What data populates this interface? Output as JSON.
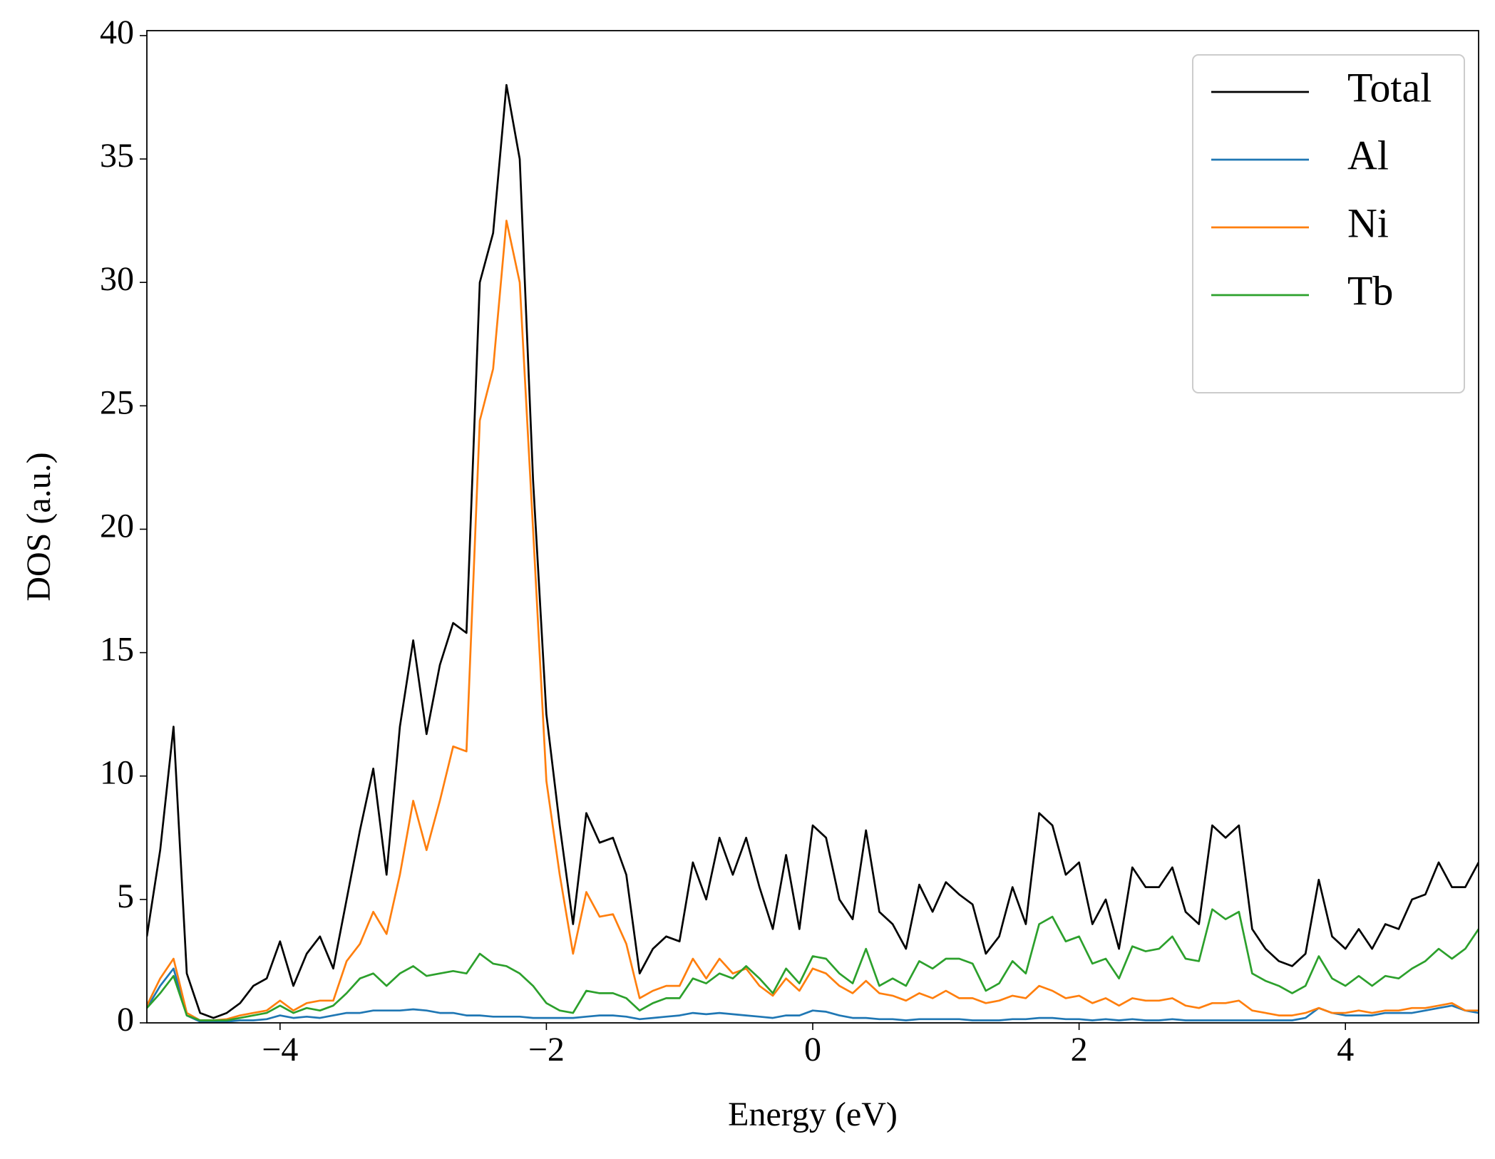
{
  "chart_data": {
    "type": "line",
    "xlabel": "Energy (eV)",
    "ylabel": "DOS (a.u.)",
    "x": [
      -5.0,
      -4.9,
      -4.8,
      -4.7,
      -4.6,
      -4.5,
      -4.4,
      -4.3,
      -4.2,
      -4.1,
      -4.0,
      -3.9,
      -3.8,
      -3.7,
      -3.6,
      -3.5,
      -3.4,
      -3.3,
      -3.2,
      -3.1,
      -3.0,
      -2.9,
      -2.8,
      -2.7,
      -2.6,
      -2.5,
      -2.4,
      -2.3,
      -2.2,
      -2.1,
      -2.0,
      -1.9,
      -1.8,
      -1.7,
      -1.6,
      -1.5,
      -1.4,
      -1.3,
      -1.2,
      -1.1,
      -1.0,
      -0.9,
      -0.8,
      -0.7,
      -0.6,
      -0.5,
      -0.4,
      -0.3,
      -0.2,
      -0.1,
      0.0,
      0.1,
      0.2,
      0.3,
      0.4,
      0.5,
      0.6,
      0.7,
      0.8,
      0.9,
      1.0,
      1.1,
      1.2,
      1.3,
      1.4,
      1.5,
      1.6,
      1.7,
      1.8,
      1.9,
      2.0,
      2.1,
      2.2,
      2.3,
      2.4,
      2.5,
      2.6,
      2.7,
      2.8,
      2.9,
      3.0,
      3.1,
      3.2,
      3.3,
      3.4,
      3.5,
      3.6,
      3.7,
      3.8,
      3.9,
      4.0,
      4.1,
      4.2,
      4.3,
      4.4,
      4.5,
      4.6,
      4.7,
      4.8,
      4.9,
      5.0
    ],
    "series": [
      {
        "name": "Total",
        "color": "#000000",
        "values": [
          3.5,
          7,
          12,
          2,
          0.4,
          0.2,
          0.4,
          0.8,
          1.5,
          1.8,
          3.3,
          1.5,
          2.8,
          3.5,
          2.2,
          5,
          7.8,
          10.3,
          6,
          12,
          15.5,
          11.7,
          14.5,
          16.2,
          15.8,
          30,
          32,
          38,
          35,
          22,
          12.5,
          8,
          4,
          8.5,
          7.3,
          7.5,
          6,
          2,
          3,
          3.5,
          3.3,
          6.5,
          5,
          7.5,
          6,
          7.5,
          5.5,
          3.8,
          6.8,
          3.8,
          8.0,
          7.5,
          5.0,
          4.2,
          7.8,
          4.5,
          4.0,
          3.0,
          5.6,
          4.5,
          5.7,
          5.2,
          4.8,
          2.8,
          3.5,
          5.5,
          4.0,
          8.5,
          8.0,
          6,
          6.5,
          4,
          5,
          3.0,
          6.3,
          5.5,
          5.5,
          6.3,
          4.5,
          4.0,
          8.0,
          7.5,
          8.0,
          3.8,
          3,
          2.5,
          2.3,
          2.8,
          5.8,
          3.5,
          3,
          3.8,
          3,
          4,
          3.8,
          5,
          5.2,
          6.5,
          5.5,
          5.5,
          6.5
        ]
      },
      {
        "name": "Al",
        "color": "#1f77b4",
        "values": [
          0.6,
          1.5,
          2.2,
          0.3,
          0.05,
          0.05,
          0.05,
          0.1,
          0.1,
          0.15,
          0.3,
          0.2,
          0.25,
          0.2,
          0.3,
          0.4,
          0.4,
          0.5,
          0.5,
          0.5,
          0.55,
          0.5,
          0.4,
          0.4,
          0.3,
          0.3,
          0.25,
          0.25,
          0.25,
          0.2,
          0.2,
          0.2,
          0.2,
          0.25,
          0.3,
          0.3,
          0.25,
          0.15,
          0.2,
          0.25,
          0.3,
          0.4,
          0.35,
          0.4,
          0.35,
          0.3,
          0.25,
          0.2,
          0.3,
          0.3,
          0.5,
          0.45,
          0.3,
          0.2,
          0.2,
          0.15,
          0.15,
          0.1,
          0.15,
          0.15,
          0.15,
          0.15,
          0.1,
          0.1,
          0.1,
          0.15,
          0.15,
          0.2,
          0.2,
          0.15,
          0.15,
          0.1,
          0.15,
          0.1,
          0.15,
          0.1,
          0.1,
          0.15,
          0.1,
          0.1,
          0.1,
          0.1,
          0.1,
          0.1,
          0.1,
          0.1,
          0.1,
          0.2,
          0.6,
          0.4,
          0.3,
          0.3,
          0.3,
          0.4,
          0.4,
          0.4,
          0.5,
          0.6,
          0.7,
          0.5,
          0.4
        ]
      },
      {
        "name": "Ni",
        "color": "#ff7f0e",
        "values": [
          0.7,
          1.8,
          2.6,
          0.4,
          0.1,
          0.1,
          0.15,
          0.3,
          0.4,
          0.5,
          0.9,
          0.5,
          0.8,
          0.9,
          0.9,
          2.5,
          3.2,
          4.5,
          3.6,
          6,
          9,
          7,
          9,
          11.2,
          11,
          24.4,
          26.5,
          32.5,
          30,
          20,
          9.8,
          6,
          2.8,
          5.3,
          4.3,
          4.4,
          3.2,
          1.0,
          1.3,
          1.5,
          1.5,
          2.6,
          1.8,
          2.6,
          2.0,
          2.2,
          1.5,
          1.1,
          1.8,
          1.3,
          2.2,
          2.0,
          1.5,
          1.2,
          1.7,
          1.2,
          1.1,
          0.9,
          1.2,
          1.0,
          1.3,
          1.0,
          1.0,
          0.8,
          0.9,
          1.1,
          1.0,
          1.5,
          1.3,
          1.0,
          1.1,
          0.8,
          1.0,
          0.7,
          1.0,
          0.9,
          0.9,
          1.0,
          0.7,
          0.6,
          0.8,
          0.8,
          0.9,
          0.5,
          0.4,
          0.3,
          0.3,
          0.4,
          0.6,
          0.4,
          0.4,
          0.5,
          0.4,
          0.5,
          0.5,
          0.6,
          0.6,
          0.7,
          0.8,
          0.5,
          0.5
        ]
      },
      {
        "name": "Tb",
        "color": "#2ca02c",
        "values": [
          0.6,
          1.2,
          1.9,
          0.3,
          0.1,
          0.1,
          0.1,
          0.2,
          0.3,
          0.4,
          0.7,
          0.4,
          0.6,
          0.5,
          0.7,
          1.2,
          1.8,
          2.0,
          1.5,
          2.0,
          2.3,
          1.9,
          2.0,
          2.1,
          2.0,
          2.8,
          2.4,
          2.3,
          2.0,
          1.5,
          0.8,
          0.5,
          0.4,
          1.3,
          1.2,
          1.2,
          1.0,
          0.5,
          0.8,
          1.0,
          1.0,
          1.8,
          1.6,
          2.0,
          1.8,
          2.3,
          1.8,
          1.2,
          2.2,
          1.6,
          2.7,
          2.6,
          2.0,
          1.6,
          3.0,
          1.5,
          1.8,
          1.5,
          2.5,
          2.2,
          2.6,
          2.6,
          2.4,
          1.3,
          1.6,
          2.5,
          2.0,
          4.0,
          4.3,
          3.3,
          3.5,
          2.4,
          2.6,
          1.8,
          3.1,
          2.9,
          3.0,
          3.5,
          2.6,
          2.5,
          4.6,
          4.2,
          4.5,
          2.0,
          1.7,
          1.5,
          1.2,
          1.5,
          2.7,
          1.8,
          1.5,
          1.9,
          1.5,
          1.9,
          1.8,
          2.2,
          2.5,
          3,
          2.6,
          3.0,
          3.8
        ]
      }
    ],
    "xlim": [
      -5,
      5
    ],
    "ylim": [
      0,
      40.2
    ],
    "xticks": [
      {
        "value": -4,
        "label": "−4"
      },
      {
        "value": -2,
        "label": "−2"
      },
      0,
      2,
      4
    ],
    "yticks": [
      0,
      5,
      10,
      15,
      20,
      25,
      30,
      35,
      40
    ],
    "legend": "upper right",
    "grid": false
  }
}
